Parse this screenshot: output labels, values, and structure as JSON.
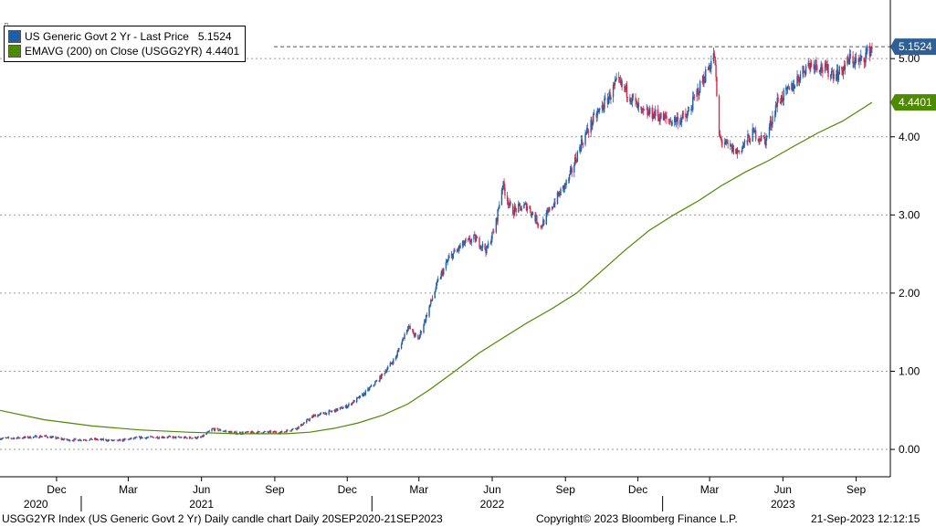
{
  "chart_data": {
    "type": "candlestick",
    "legend": [
      {
        "label": "US Generic Govt 2 Yr - Last Price",
        "value": "5.1524",
        "color": "#1f5fa8"
      },
      {
        "label": "EMAVG (200)  on Close (USGG2YR)",
        "value": "4.4401",
        "color": "#4d8a00"
      }
    ],
    "last_price": 5.1524,
    "last_price_label": "5.1524",
    "ema_last": 4.4401,
    "ema_last_label": "4.4401",
    "y_ticks": [
      "0.00",
      "1.00",
      "2.00",
      "3.00",
      "4.00",
      "5.00"
    ],
    "ylim": [
      -0.35,
      5.75
    ],
    "x_range": [
      "2020-09-21",
      "2023-09-21"
    ],
    "month_labels": [
      {
        "label": "Dec",
        "date": "2020-12-01"
      },
      {
        "label": "Mar",
        "date": "2021-03-01"
      },
      {
        "label": "Jun",
        "date": "2021-06-01"
      },
      {
        "label": "Sep",
        "date": "2021-09-01"
      },
      {
        "label": "Dec",
        "date": "2021-12-01"
      },
      {
        "label": "Mar",
        "date": "2022-03-01"
      },
      {
        "label": "Jun",
        "date": "2022-06-01"
      },
      {
        "label": "Sep",
        "date": "2022-09-01"
      },
      {
        "label": "Dec",
        "date": "2022-12-01"
      },
      {
        "label": "Mar",
        "date": "2023-03-01"
      },
      {
        "label": "Jun",
        "date": "2023-06-01"
      },
      {
        "label": "Sep",
        "date": "2023-09-01"
      }
    ],
    "year_labels": [
      {
        "label": "2020",
        "date": "2020-11-05"
      },
      {
        "label": "2021",
        "date": "2021-06-01"
      },
      {
        "label": "2022",
        "date": "2022-06-01"
      },
      {
        "label": "2023",
        "date": "2023-06-01"
      }
    ],
    "year_separators": [
      "2021-01-01",
      "2022-01-01",
      "2023-01-01"
    ],
    "price_series": [
      [
        "2020-09-21",
        0.14
      ],
      [
        "2020-10-20",
        0.15
      ],
      [
        "2020-11-15",
        0.17
      ],
      [
        "2020-12-15",
        0.12
      ],
      [
        "2021-01-15",
        0.13
      ],
      [
        "2021-02-15",
        0.11
      ],
      [
        "2021-03-15",
        0.15
      ],
      [
        "2021-04-15",
        0.16
      ],
      [
        "2021-05-10",
        0.15
      ],
      [
        "2021-05-31",
        0.15
      ],
      [
        "2021-06-15",
        0.26
      ],
      [
        "2021-07-15",
        0.21
      ],
      [
        "2021-08-15",
        0.22
      ],
      [
        "2021-09-10",
        0.22
      ],
      [
        "2021-09-30",
        0.28
      ],
      [
        "2021-10-20",
        0.43
      ],
      [
        "2021-11-10",
        0.48
      ],
      [
        "2021-11-30",
        0.55
      ],
      [
        "2021-12-20",
        0.69
      ],
      [
        "2022-01-10",
        0.9
      ],
      [
        "2022-01-31",
        1.18
      ],
      [
        "2022-02-15",
        1.58
      ],
      [
        "2022-02-28",
        1.4
      ],
      [
        "2022-03-10",
        1.7
      ],
      [
        "2022-03-25",
        2.15
      ],
      [
        "2022-04-08",
        2.45
      ],
      [
        "2022-04-25",
        2.62
      ],
      [
        "2022-05-10",
        2.7
      ],
      [
        "2022-05-25",
        2.55
      ],
      [
        "2022-06-05",
        2.85
      ],
      [
        "2022-06-14",
        3.4
      ],
      [
        "2022-06-25",
        3.05
      ],
      [
        "2022-07-15",
        3.12
      ],
      [
        "2022-08-01",
        2.85
      ],
      [
        "2022-08-20",
        3.2
      ],
      [
        "2022-09-05",
        3.45
      ],
      [
        "2022-09-20",
        3.9
      ],
      [
        "2022-10-05",
        4.2
      ],
      [
        "2022-10-25",
        4.5
      ],
      [
        "2022-11-05",
        4.7
      ],
      [
        "2022-11-20",
        4.55
      ],
      [
        "2022-12-05",
        4.3
      ],
      [
        "2022-12-20",
        4.3
      ],
      [
        "2023-01-10",
        4.2
      ],
      [
        "2023-01-31",
        4.25
      ],
      [
        "2023-02-15",
        4.6
      ],
      [
        "2023-03-07",
        5.05
      ],
      [
        "2023-03-13",
        4.0
      ],
      [
        "2023-03-20",
        3.9
      ],
      [
        "2023-04-05",
        3.8
      ],
      [
        "2023-04-25",
        4.05
      ],
      [
        "2023-05-10",
        3.95
      ],
      [
        "2023-05-25",
        4.45
      ],
      [
        "2023-06-10",
        4.6
      ],
      [
        "2023-06-30",
        4.9
      ],
      [
        "2023-07-10",
        4.95
      ],
      [
        "2023-07-25",
        4.85
      ],
      [
        "2023-08-10",
        4.8
      ],
      [
        "2023-08-25",
        5.0
      ],
      [
        "2023-09-05",
        4.95
      ],
      [
        "2023-09-21",
        5.15
      ]
    ],
    "ema_series": [
      [
        "2020-09-21",
        0.5
      ],
      [
        "2020-11-15",
        0.38
      ],
      [
        "2021-01-15",
        0.3
      ],
      [
        "2021-03-15",
        0.25
      ],
      [
        "2021-05-15",
        0.22
      ],
      [
        "2021-07-15",
        0.2
      ],
      [
        "2021-09-15",
        0.2
      ],
      [
        "2021-10-15",
        0.22
      ],
      [
        "2021-11-15",
        0.27
      ],
      [
        "2021-12-15",
        0.34
      ],
      [
        "2022-01-15",
        0.44
      ],
      [
        "2022-02-15",
        0.58
      ],
      [
        "2022-03-15",
        0.77
      ],
      [
        "2022-04-15",
        1.0
      ],
      [
        "2022-05-15",
        1.23
      ],
      [
        "2022-06-15",
        1.43
      ],
      [
        "2022-07-15",
        1.62
      ],
      [
        "2022-08-15",
        1.8
      ],
      [
        "2022-09-15",
        2.0
      ],
      [
        "2022-10-15",
        2.27
      ],
      [
        "2022-11-15",
        2.55
      ],
      [
        "2022-12-15",
        2.8
      ],
      [
        "2023-01-15",
        3.0
      ],
      [
        "2023-02-15",
        3.18
      ],
      [
        "2023-03-15",
        3.37
      ],
      [
        "2023-04-15",
        3.55
      ],
      [
        "2023-05-15",
        3.7
      ],
      [
        "2023-06-15",
        3.88
      ],
      [
        "2023-07-15",
        4.05
      ],
      [
        "2023-08-15",
        4.2
      ],
      [
        "2023-09-21",
        4.44
      ]
    ],
    "up_color": "#1f5fa8",
    "down_color": "#d6294b",
    "ema_color": "#4d8a00",
    "price_tag_color": "#2e5f96",
    "ema_tag_color": "#4d8a00",
    "grid": true
  },
  "footer": {
    "index_text": "USGG2YR Index (US Generic Govt 2 Yr) Daily candle chart  Daily 20SEP2020-21SEP2023",
    "copyright": "Copyright© 2023 Bloomberg Finance L.P.",
    "timestamp": "21-Sep-2023 12:12:15"
  }
}
